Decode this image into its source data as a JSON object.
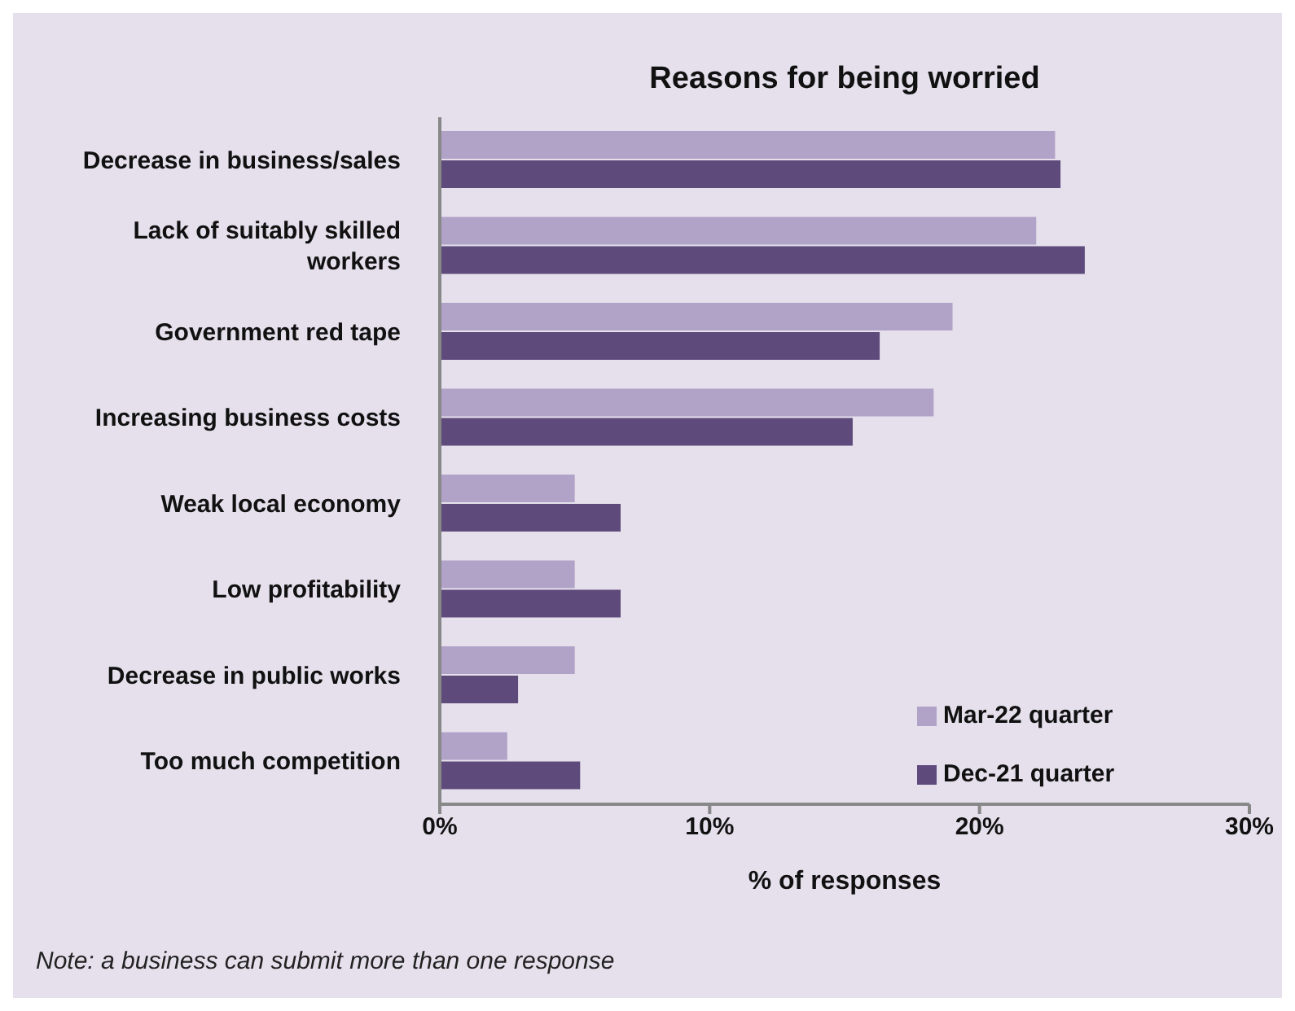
{
  "chart_data": {
    "type": "bar",
    "orientation": "horizontal",
    "title": "Reasons for being worried",
    "xlabel": "% of responses",
    "categories": [
      "Decrease in business/sales",
      "Lack of suitably skilled workers",
      "Government red tape",
      "Increasing business costs",
      "Weak local economy",
      "Low profitability",
      "Decrease in public works",
      "Too much competition"
    ],
    "series": [
      {
        "name": "Mar-22 quarter",
        "color": "#b1a2c8",
        "values": [
          22.8,
          22.1,
          19.0,
          18.3,
          5.0,
          5.0,
          5.0,
          2.5
        ]
      },
      {
        "name": "Dec-21 quarter",
        "color": "#5e4a7b",
        "values": [
          23.0,
          23.9,
          16.3,
          15.3,
          6.7,
          6.7,
          2.9,
          5.2
        ]
      }
    ],
    "xlim": [
      0,
      30
    ],
    "xticks": [
      {
        "value": 0,
        "label": "0%"
      },
      {
        "value": 10,
        "label": "10%"
      },
      {
        "value": 20,
        "label": "20%"
      },
      {
        "value": 30,
        "label": "30%"
      }
    ],
    "grid": false,
    "legend": "bottom right",
    "annotations": [
      "Note: a business can submit more than one response"
    ]
  }
}
